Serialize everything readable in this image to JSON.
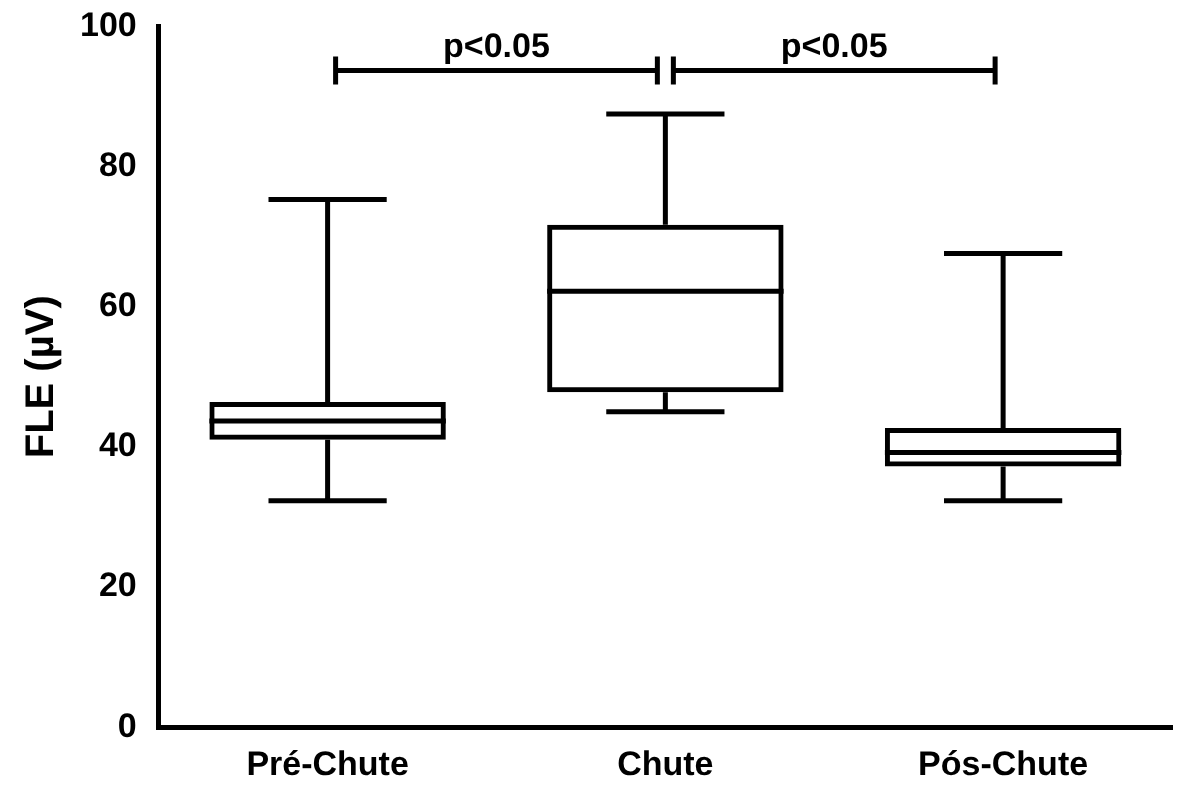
{
  "chart_data": {
    "type": "box",
    "ylabel": "FLE (µV)",
    "categories": [
      "Pré-Chute",
      "Chute",
      "Pós-Chute"
    ],
    "boxes": [
      {
        "low": 32.3,
        "q1": 41,
        "median": 43.7,
        "q3": 46.4,
        "high": 75.3
      },
      {
        "low": 45,
        "q1": 47.8,
        "median": 62.2,
        "q3": 71.7,
        "high": 87.5
      },
      {
        "low": 32.3,
        "q1": 37.2,
        "median": 39.2,
        "q3": 42.7,
        "high": 67.6
      }
    ],
    "color": "#000000",
    "ylim": [
      0,
      100
    ],
    "yticks": [
      0,
      20,
      40,
      60,
      80,
      100
    ],
    "grid": false,
    "legend": false,
    "annotations": [
      "p<0.05",
      "p<0.05"
    ]
  }
}
